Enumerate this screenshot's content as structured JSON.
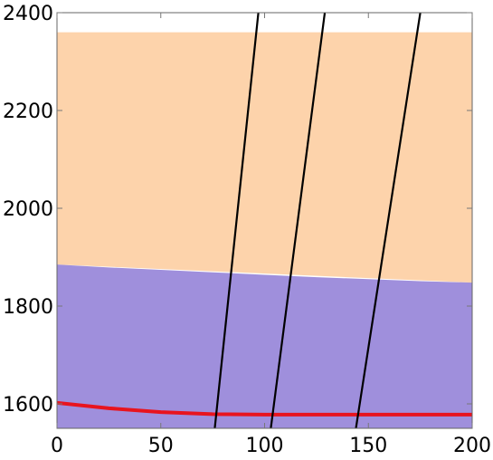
{
  "chart_data": {
    "type": "area",
    "title": "",
    "xlabel": "",
    "ylabel": "",
    "xlim": [
      0,
      200
    ],
    "ylim": [
      1550,
      2400
    ],
    "grid": false,
    "x_ticks": [
      0,
      50,
      100,
      150,
      200
    ],
    "y_ticks": [
      1600,
      1800,
      2000,
      2200,
      2400
    ],
    "x_tick_labels": [
      "0",
      "50",
      "100",
      "150",
      "200"
    ],
    "y_tick_labels": [
      "1600",
      "1800",
      "2000",
      "2200",
      "2400"
    ],
    "regions": [
      {
        "color": "#fdd3ab",
        "x": [
          0,
          200
        ],
        "lower": [
          1885,
          1848
        ],
        "upper": [
          2360,
          2360
        ]
      },
      {
        "color": "#9f8fdc",
        "x": [
          0,
          25,
          50,
          75,
          100,
          125,
          150,
          175,
          200
        ],
        "lower": [
          1550,
          1550,
          1550,
          1550,
          1550,
          1550,
          1550,
          1550,
          1550
        ],
        "upper": [
          1885,
          1879,
          1874,
          1869,
          1864,
          1859,
          1855,
          1851,
          1848
        ]
      }
    ],
    "series": [
      {
        "color": "#e8141e",
        "x": [
          0,
          25,
          50,
          75,
          100,
          125,
          150,
          175,
          200
        ],
        "y": [
          1602,
          1591,
          1583,
          1579,
          1578,
          1578,
          1578,
          1578,
          1578
        ]
      },
      {
        "color": "#000000",
        "x": [
          76,
          97
        ],
        "y": [
          1550,
          2400
        ]
      },
      {
        "color": "#000000",
        "x": [
          103,
          129
        ],
        "y": [
          1550,
          2400
        ]
      },
      {
        "color": "#000000",
        "x": [
          144,
          175
        ],
        "y": [
          1550,
          2400
        ]
      }
    ]
  }
}
